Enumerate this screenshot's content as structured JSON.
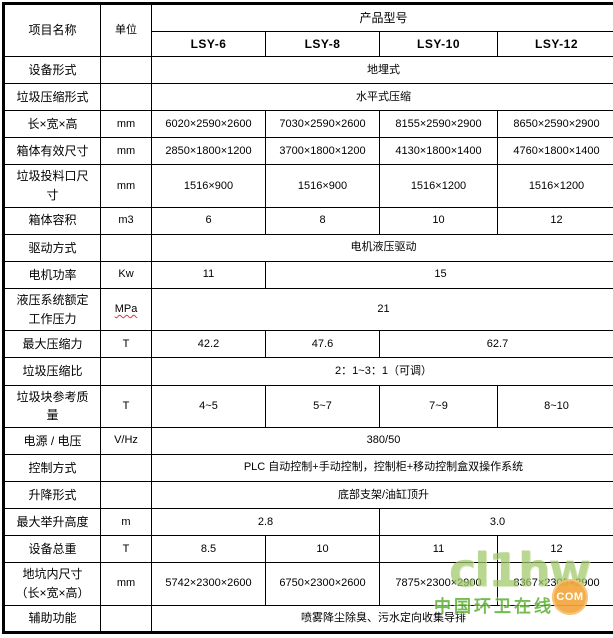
{
  "table": {
    "header": {
      "item_name": "项目名称",
      "unit": "单位",
      "product_model": "产品型号",
      "models": [
        "LSY-6",
        "LSY-8",
        "LSY-10",
        "LSY-12"
      ]
    },
    "rows": [
      {
        "label": "设备形式",
        "unit": "",
        "cells": [
          {
            "text": "地埋式",
            "span": 4
          }
        ]
      },
      {
        "label": "垃圾压缩形式",
        "unit": "",
        "cells": [
          {
            "text": "水平式压缩",
            "span": 4
          }
        ]
      },
      {
        "label": "长×宽×高",
        "unit": "mm",
        "cells": [
          {
            "text": "6020×2590×2600",
            "span": 1
          },
          {
            "text": "7030×2590×2600",
            "span": 1
          },
          {
            "text": "8155×2590×2900",
            "span": 1
          },
          {
            "text": "8650×2590×2900",
            "span": 1
          }
        ]
      },
      {
        "label": "箱体有效尺寸",
        "unit": "mm",
        "cells": [
          {
            "text": "2850×1800×1200",
            "span": 1
          },
          {
            "text": "3700×1800×1200",
            "span": 1
          },
          {
            "text": "4130×1800×1400",
            "span": 1
          },
          {
            "text": "4760×1800×1400",
            "span": 1
          }
        ]
      },
      {
        "label": "垃圾投料口尺寸",
        "unit": "mm",
        "cells": [
          {
            "text": "1516×900",
            "span": 1
          },
          {
            "text": "1516×900",
            "span": 1
          },
          {
            "text": "1516×1200",
            "span": 1
          },
          {
            "text": "1516×1200",
            "span": 1
          }
        ]
      },
      {
        "label": "箱体容积",
        "unit": "m3",
        "cells": [
          {
            "text": "6",
            "span": 1
          },
          {
            "text": "8",
            "span": 1
          },
          {
            "text": "10",
            "span": 1
          },
          {
            "text": "12",
            "span": 1
          }
        ]
      },
      {
        "label": "驱动方式",
        "unit": "",
        "cells": [
          {
            "text": "电机液压驱动",
            "span": 4
          }
        ]
      },
      {
        "label": "电机功率",
        "unit": "Kw",
        "cells": [
          {
            "text": "11",
            "span": 1
          },
          {
            "text": "15",
            "span": 3
          }
        ]
      },
      {
        "label": "液压系统额定工作压力",
        "unit": "MPa",
        "unit_wavy": true,
        "cells": [
          {
            "text": "21",
            "span": 4
          }
        ]
      },
      {
        "label": "最大压缩力",
        "unit": "T",
        "cells": [
          {
            "text": "42.2",
            "span": 1
          },
          {
            "text": "47.6",
            "span": 1
          },
          {
            "text": "62.7",
            "span": 2
          }
        ]
      },
      {
        "label": "垃圾压缩比",
        "unit": "",
        "cells": [
          {
            "text": "2：1~3：1（可调）",
            "span": 4
          }
        ]
      },
      {
        "label": "垃圾块参考质量",
        "unit": "T",
        "cells": [
          {
            "text": "4~5",
            "span": 1
          },
          {
            "text": "5~7",
            "span": 1
          },
          {
            "text": "7~9",
            "span": 1
          },
          {
            "text": "8~10",
            "span": 1
          }
        ]
      },
      {
        "label": "电源 / 电压",
        "unit": "V/Hz",
        "cells": [
          {
            "text": "380/50",
            "span": 4
          }
        ]
      },
      {
        "label": "控制方式",
        "unit": "",
        "cells": [
          {
            "text": "PLC 自动控制+手动控制，控制柜+移动控制盒双操作系统",
            "span": 4
          }
        ]
      },
      {
        "label": "升降形式",
        "unit": "",
        "cells": [
          {
            "text": "底部支架/油缸顶升",
            "span": 4
          }
        ]
      },
      {
        "label": "最大举升高度",
        "unit": "m",
        "cells": [
          {
            "text": "2.8",
            "span": 2
          },
          {
            "text": "3.0",
            "span": 2
          }
        ]
      },
      {
        "label": "设备总重",
        "unit": "T",
        "cells": [
          {
            "text": "8.5",
            "span": 1
          },
          {
            "text": "10",
            "span": 1
          },
          {
            "text": "11",
            "span": 1
          },
          {
            "text": "12",
            "span": 1
          }
        ]
      },
      {
        "label": "地坑内尺寸（长×宽×高）",
        "unit": "mm",
        "cells": [
          {
            "text": "5742×2300×2600",
            "span": 1
          },
          {
            "text": "6750×2300×2600",
            "span": 1
          },
          {
            "text": "7875×2300×2900",
            "span": 1
          },
          {
            "text": "8367×2300×2900",
            "span": 1
          }
        ]
      },
      {
        "label": "辅助功能",
        "unit": "",
        "cells": [
          {
            "text": "喷雾降尘除臭、污水定向收集导排",
            "span": 4
          }
        ]
      }
    ]
  },
  "watermark": {
    "logo_text": "cl1hw",
    "caption": "中国环卫在线",
    "badge": "COM",
    "logo_color": "#9fc866",
    "caption_color": "#5fae34",
    "badge_color": "#f2a73d"
  }
}
